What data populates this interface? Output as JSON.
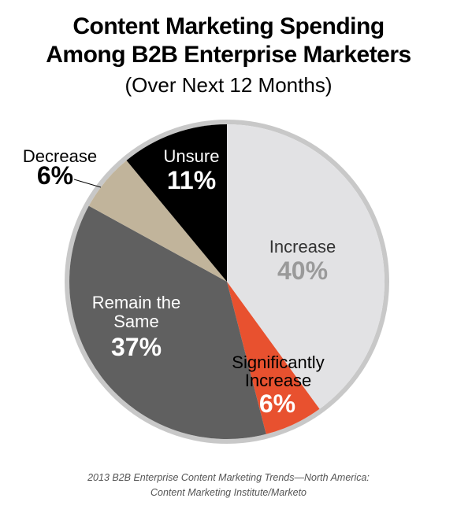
{
  "chart_data": {
    "type": "pie",
    "title_line1": "Content Marketing Spending",
    "title_line2": "Among B2B Enterprise Marketers",
    "subtitle": "(Over Next 12 Months)",
    "slices": [
      {
        "name": "Increase",
        "value": 40,
        "label": "40%",
        "color": "#e2e2e4",
        "name_color": "#333333",
        "pct_color": "#9a9a9a"
      },
      {
        "name": "Significantly Increase",
        "value": 6,
        "label": "6%",
        "color": "#e8512f",
        "name_color": "#000000",
        "pct_color": "#ffffff"
      },
      {
        "name": "Remain the Same",
        "value": 37,
        "label": "37%",
        "color": "#606060",
        "name_color": "#ffffff",
        "pct_color": "#ffffff"
      },
      {
        "name": "Decrease",
        "value": 6,
        "label": "6%",
        "color": "#c1b49b",
        "name_color": "#000000",
        "pct_color": "#000000"
      },
      {
        "name": "Unsure",
        "value": 11,
        "label": "11%",
        "color": "#000000",
        "name_color": "#ffffff",
        "pct_color": "#ffffff"
      }
    ],
    "start": "12 o'clock, clockwise",
    "rim_color": "#c8c8c8"
  },
  "labels": {
    "increase_name": "Increase",
    "significantly_line1": "Significantly",
    "significantly_line2": "Increase",
    "remain_line1": "Remain the",
    "remain_line2": "Same",
    "decrease_name": "Decrease",
    "unsure_name": "Unsure"
  },
  "source": {
    "line1": "2013 B2B Enterprise Content Marketing Trends—North America:",
    "line2": "Content Marketing Institute/Marketo"
  }
}
